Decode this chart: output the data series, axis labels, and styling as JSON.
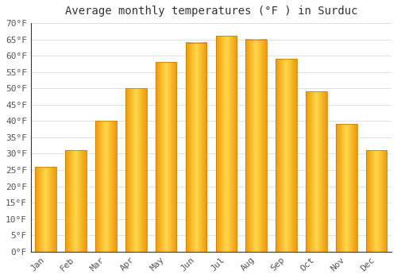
{
  "title": "Average monthly temperatures (°F ) in Surduc",
  "months": [
    "Jan",
    "Feb",
    "Mar",
    "Apr",
    "May",
    "Jun",
    "Jul",
    "Aug",
    "Sep",
    "Oct",
    "Nov",
    "Dec"
  ],
  "values": [
    26,
    31,
    40,
    50,
    58,
    64,
    66,
    65,
    59,
    49,
    39,
    31
  ],
  "bar_color_edge": "#F0980A",
  "bar_color_center": "#FFD84A",
  "bar_outline": "#C8820A",
  "ylim": [
    0,
    70
  ],
  "yticks": [
    0,
    5,
    10,
    15,
    20,
    25,
    30,
    35,
    40,
    45,
    50,
    55,
    60,
    65,
    70
  ],
  "grid_color": "#e0e0e0",
  "bg_color": "#ffffff",
  "title_fontsize": 10,
  "tick_fontsize": 8,
  "font_family": "monospace"
}
